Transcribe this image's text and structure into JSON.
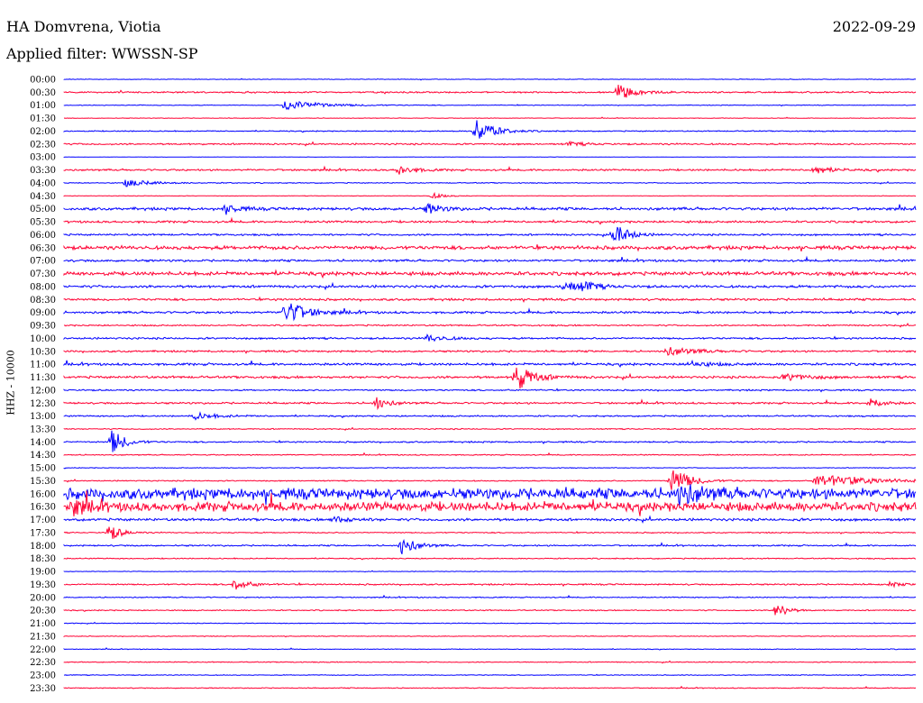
{
  "header": {
    "station": "HA Domvrena, Viotia",
    "date": "2022-09-29",
    "filter": "Applied filter: WWSSN-SP"
  },
  "axis": {
    "ylabel": "HHZ - 10000"
  },
  "colors": {
    "even": "#0000ff",
    "odd": "#ff0033"
  },
  "chart_data": {
    "type": "line",
    "title": "HA Domvrena, Viotia",
    "subtitle": "Applied filter: WWSSN-SP",
    "ylabel": "HHZ - 10000",
    "rows": [
      "00:00",
      "00:30",
      "01:00",
      "01:30",
      "02:00",
      "02:30",
      "03:00",
      "03:30",
      "04:00",
      "04:30",
      "05:00",
      "05:30",
      "06:00",
      "06:30",
      "07:00",
      "07:30",
      "08:00",
      "08:30",
      "09:00",
      "09:30",
      "10:00",
      "10:30",
      "11:00",
      "11:30",
      "12:00",
      "12:30",
      "13:00",
      "13:30",
      "14:00",
      "14:30",
      "15:00",
      "15:30",
      "16:00",
      "16:30",
      "17:00",
      "17:30",
      "18:00",
      "18:30",
      "19:00",
      "19:30",
      "20:00",
      "20:30",
      "21:00",
      "21:30",
      "22:00",
      "22:30",
      "23:00",
      "23:30"
    ],
    "row_minutes": 30,
    "noise": [
      0.3,
      0.8,
      0.4,
      0.3,
      0.6,
      0.9,
      0.2,
      1.0,
      0.5,
      0.3,
      1.5,
      1.2,
      1.0,
      2.0,
      1.2,
      2.0,
      1.4,
      1.2,
      1.2,
      0.8,
      1.0,
      1.0,
      1.3,
      1.3,
      0.8,
      1.0,
      0.8,
      0.6,
      0.8,
      0.6,
      0.4,
      0.6,
      6.0,
      5.0,
      1.4,
      0.6,
      0.8,
      0.6,
      0.3,
      0.8,
      0.6,
      0.6,
      0.4,
      0.4,
      0.4,
      0.5,
      0.4,
      0.5
    ],
    "events": [
      {
        "row": 1,
        "minute": 19.5,
        "amp": 9,
        "dur": 1.2
      },
      {
        "row": 2,
        "minute": 7.8,
        "amp": 6,
        "dur": 2.5
      },
      {
        "row": 4,
        "minute": 14.5,
        "amp": 14,
        "dur": 1.3
      },
      {
        "row": 5,
        "minute": 17.8,
        "amp": 2,
        "dur": 1.2
      },
      {
        "row": 7,
        "minute": 11.8,
        "amp": 5,
        "dur": 1.2
      },
      {
        "row": 7,
        "minute": 26.4,
        "amp": 5,
        "dur": 1.2
      },
      {
        "row": 8,
        "minute": 2.2,
        "amp": 4,
        "dur": 1.8
      },
      {
        "row": 9,
        "minute": 13.0,
        "amp": 3,
        "dur": 0.9
      },
      {
        "row": 10,
        "minute": 5.7,
        "amp": 5,
        "dur": 1.0
      },
      {
        "row": 10,
        "minute": 12.8,
        "amp": 6,
        "dur": 1.0
      },
      {
        "row": 12,
        "minute": 19.4,
        "amp": 14,
        "dur": 0.9
      },
      {
        "row": 16,
        "minute": 17.6,
        "amp": 7,
        "dur": 0.9
      },
      {
        "row": 16,
        "minute": 18.3,
        "amp": 5,
        "dur": 1.0
      },
      {
        "row": 18,
        "minute": 7.8,
        "amp": 14,
        "dur": 1.5
      },
      {
        "row": 20,
        "minute": 12.8,
        "amp": 4,
        "dur": 1.3
      },
      {
        "row": 21,
        "minute": 21.2,
        "amp": 5,
        "dur": 2.0
      },
      {
        "row": 22,
        "minute": 22.0,
        "amp": 3,
        "dur": 1.6
      },
      {
        "row": 23,
        "minute": 15.9,
        "amp": 16,
        "dur": 1.2
      },
      {
        "row": 23,
        "minute": 25.4,
        "amp": 4,
        "dur": 1.6
      },
      {
        "row": 25,
        "minute": 11.0,
        "amp": 7,
        "dur": 0.9
      },
      {
        "row": 25,
        "minute": 28.4,
        "amp": 6,
        "dur": 0.9
      },
      {
        "row": 26,
        "minute": 4.6,
        "amp": 4,
        "dur": 1.5
      },
      {
        "row": 28,
        "minute": 1.7,
        "amp": 14,
        "dur": 0.9
      },
      {
        "row": 31,
        "minute": 21.4,
        "amp": 15,
        "dur": 1.3
      },
      {
        "row": 31,
        "minute": 26.5,
        "amp": 7,
        "dur": 4.0
      },
      {
        "row": 32,
        "minute": 21.7,
        "amp": 12,
        "dur": 1.3
      },
      {
        "row": 33,
        "minute": 0.3,
        "amp": 8,
        "dur": 1.0
      },
      {
        "row": 34,
        "minute": 9.5,
        "amp": 3,
        "dur": 1.4
      },
      {
        "row": 35,
        "minute": 1.6,
        "amp": 10,
        "dur": 0.8
      },
      {
        "row": 36,
        "minute": 11.9,
        "amp": 11,
        "dur": 1.0
      },
      {
        "row": 39,
        "minute": 6.0,
        "amp": 6,
        "dur": 1.1
      },
      {
        "row": 39,
        "minute": 29.1,
        "amp": 3,
        "dur": 0.7
      },
      {
        "row": 41,
        "minute": 25.1,
        "amp": 10,
        "dur": 0.7
      }
    ]
  }
}
